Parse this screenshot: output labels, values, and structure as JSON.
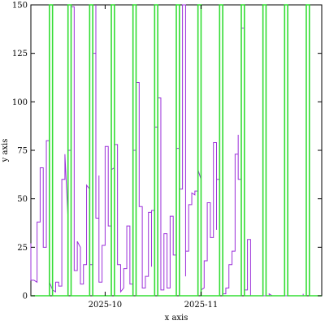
{
  "chart_data": {
    "type": "line",
    "xlabel": "x axis",
    "ylabel": "y axis",
    "x_start": "2025-09-07",
    "x_end": "2025-12-10",
    "ylim": [
      0,
      150
    ],
    "y_ticks": [
      0,
      25,
      50,
      75,
      100,
      125,
      150
    ],
    "x_ticks": [
      {
        "label": "2025-10",
        "date": "2025-10-01"
      },
      {
        "label": "2025-11",
        "date": "2025-11-01"
      }
    ],
    "grid": false,
    "colors": {
      "purple_series": "#9b30d9",
      "green_series": "#33dd33"
    },
    "series": [
      {
        "color": "#9b30d9",
        "points": [
          [
            "2025-09-07",
            27
          ],
          [
            "2025-09-07",
            8
          ],
          [
            "2025-09-08",
            8
          ],
          [
            "2025-09-09",
            7
          ],
          [
            "2025-09-09",
            38
          ],
          [
            "2025-09-10",
            38
          ],
          [
            "2025-09-10",
            66
          ],
          [
            "2025-09-11",
            66
          ],
          [
            "2025-09-11",
            25
          ],
          [
            "2025-09-12",
            25
          ],
          [
            "2025-09-12",
            33
          ],
          [
            "2025-09-12",
            80
          ],
          [
            "2025-09-13",
            80
          ],
          [
            "2025-09-13",
            7
          ],
          [
            "2025-09-14",
            3
          ],
          [
            "2025-09-15",
            2
          ],
          [
            "2025-09-15",
            7
          ],
          [
            "2025-09-16",
            7
          ],
          [
            "2025-09-16",
            5
          ],
          [
            "2025-09-17",
            5
          ],
          [
            "2025-09-17",
            60
          ],
          [
            "2025-09-18",
            60
          ],
          [
            "2025-09-18",
            73
          ],
          [
            "2025-09-19",
            40
          ],
          [
            "2025-09-19",
            75
          ],
          [
            "2025-09-20",
            75
          ],
          [
            "2025-09-20",
            149
          ],
          [
            "2025-09-21",
            149
          ],
          [
            "2025-09-21",
            13
          ],
          [
            "2025-09-22",
            13
          ],
          [
            "2025-09-22",
            28
          ],
          [
            "2025-09-23",
            25
          ],
          [
            "2025-09-23",
            6
          ],
          [
            "2025-09-24",
            6
          ],
          [
            "2025-09-24",
            16
          ],
          [
            "2025-09-25",
            16
          ],
          [
            "2025-09-25",
            57
          ],
          [
            "2025-09-26",
            55
          ],
          [
            "2025-09-26",
            16
          ],
          [
            "2025-09-27",
            16
          ],
          [
            "2025-09-27",
            90
          ],
          [
            "2025-09-27",
            125
          ],
          [
            "2025-09-28",
            125
          ],
          [
            "2025-09-28",
            150
          ],
          [
            "2025-09-28",
            40
          ],
          [
            "2025-09-29",
            40
          ],
          [
            "2025-09-29",
            62
          ],
          [
            "2025-09-29",
            7
          ],
          [
            "2025-09-30",
            7
          ],
          [
            "2025-09-30",
            26
          ],
          [
            "2025-10-01",
            26
          ],
          [
            "2025-10-01",
            77
          ],
          [
            "2025-10-02",
            77
          ],
          [
            "2025-10-02",
            36
          ],
          [
            "2025-10-03",
            36
          ],
          [
            "2025-10-03",
            65
          ],
          [
            "2025-10-04",
            66
          ],
          [
            "2025-10-04",
            78
          ],
          [
            "2025-10-05",
            78
          ],
          [
            "2025-10-05",
            16
          ],
          [
            "2025-10-06",
            16
          ],
          [
            "2025-10-06",
            2
          ],
          [
            "2025-10-07",
            4
          ],
          [
            "2025-10-07",
            14
          ],
          [
            "2025-10-08",
            14
          ],
          [
            "2025-10-08",
            36
          ],
          [
            "2025-10-09",
            36
          ],
          [
            "2025-10-09",
            6
          ],
          [
            "2025-10-10",
            6
          ],
          [
            "2025-10-10",
            75
          ],
          [
            "2025-10-11",
            75
          ],
          [
            "2025-10-11",
            110
          ],
          [
            "2025-10-12",
            110
          ],
          [
            "2025-10-12",
            46
          ],
          [
            "2025-10-13",
            46
          ],
          [
            "2025-10-13",
            4
          ],
          [
            "2025-10-14",
            4
          ],
          [
            "2025-10-14",
            10
          ],
          [
            "2025-10-15",
            10
          ],
          [
            "2025-10-15",
            43
          ],
          [
            "2025-10-16",
            43
          ],
          [
            "2025-10-16",
            15
          ],
          [
            "2025-10-16",
            44
          ],
          [
            "2025-10-17",
            44
          ],
          [
            "2025-10-17",
            87
          ],
          [
            "2025-10-18",
            87
          ],
          [
            "2025-10-18",
            77
          ],
          [
            "2025-10-18",
            102
          ],
          [
            "2025-10-19",
            102
          ],
          [
            "2025-10-19",
            3
          ],
          [
            "2025-10-20",
            3
          ],
          [
            "2025-10-20",
            32
          ],
          [
            "2025-10-21",
            32
          ],
          [
            "2025-10-21",
            4
          ],
          [
            "2025-10-22",
            4
          ],
          [
            "2025-10-22",
            41
          ],
          [
            "2025-10-23",
            41
          ],
          [
            "2025-10-23",
            21
          ],
          [
            "2025-10-24",
            21
          ],
          [
            "2025-10-24",
            76
          ],
          [
            "2025-10-25",
            76
          ],
          [
            "2025-10-25",
            55
          ],
          [
            "2025-10-26",
            55
          ],
          [
            "2025-10-26",
            150
          ],
          [
            "2025-10-27",
            150
          ],
          [
            "2025-10-27",
            10
          ],
          [
            "2025-10-27",
            23
          ],
          [
            "2025-10-28",
            23
          ],
          [
            "2025-10-28",
            47
          ],
          [
            "2025-10-29",
            47
          ],
          [
            "2025-10-29",
            53
          ],
          [
            "2025-10-30",
            52
          ],
          [
            "2025-10-30",
            54
          ],
          [
            "2025-10-31",
            54
          ],
          [
            "2025-10-31",
            65
          ],
          [
            "2025-11-01",
            60
          ],
          [
            "2025-11-01",
            122
          ],
          [
            "2025-11-01",
            3
          ],
          [
            "2025-11-02",
            4
          ],
          [
            "2025-11-02",
            18
          ],
          [
            "2025-11-03",
            18
          ],
          [
            "2025-11-03",
            48
          ],
          [
            "2025-11-04",
            48
          ],
          [
            "2025-11-04",
            30
          ],
          [
            "2025-11-05",
            30
          ],
          [
            "2025-11-05",
            79
          ],
          [
            "2025-11-06",
            79
          ],
          [
            "2025-11-06",
            34
          ],
          [
            "2025-11-06",
            60
          ],
          [
            "2025-11-07",
            60
          ],
          [
            "2025-11-07",
            150
          ],
          [
            "2025-11-08",
            150
          ],
          [
            "2025-11-08",
            1
          ],
          [
            "2025-11-09",
            1
          ],
          [
            "2025-11-09",
            4
          ],
          [
            "2025-11-10",
            4
          ],
          [
            "2025-11-10",
            16
          ],
          [
            "2025-11-11",
            16
          ],
          [
            "2025-11-11",
            23
          ],
          [
            "2025-11-12",
            23
          ],
          [
            "2025-11-12",
            73
          ],
          [
            "2025-11-13",
            73
          ],
          [
            "2025-11-13",
            83
          ],
          [
            "2025-11-13",
            60
          ],
          [
            "2025-11-14",
            60
          ],
          [
            "2025-11-14",
            138
          ],
          [
            "2025-11-15",
            138
          ],
          [
            "2025-11-15",
            3
          ],
          [
            "2025-11-16",
            3
          ],
          [
            "2025-11-16",
            29
          ],
          [
            "2025-11-17",
            29
          ],
          [
            "2025-11-17",
            0
          ],
          [
            "2025-11-23",
            0
          ],
          [
            "2025-11-23",
            1
          ],
          [
            "2025-11-24",
            0
          ],
          [
            "2025-12-04",
            0
          ],
          [
            "2025-12-04",
            1
          ]
        ]
      },
      {
        "color": "#33dd33",
        "points": [
          [
            "2025-09-07",
            0
          ],
          [
            "2025-09-13",
            0
          ],
          [
            "2025-09-13",
            150
          ],
          [
            "2025-09-14",
            150
          ],
          [
            "2025-09-14",
            0
          ],
          [
            "2025-09-19",
            0
          ],
          [
            "2025-09-19",
            150
          ],
          [
            "2025-09-20",
            150
          ],
          [
            "2025-09-20",
            0
          ],
          [
            "2025-09-26",
            0
          ],
          [
            "2025-09-26",
            150
          ],
          [
            "2025-09-27",
            150
          ],
          [
            "2025-09-27",
            0
          ],
          [
            "2025-10-03",
            0
          ],
          [
            "2025-10-03",
            150
          ],
          [
            "2025-10-04",
            150
          ],
          [
            "2025-10-04",
            0
          ],
          [
            "2025-10-10",
            0
          ],
          [
            "2025-10-10",
            150
          ],
          [
            "2025-10-11",
            150
          ],
          [
            "2025-10-11",
            0
          ],
          [
            "2025-10-17",
            0
          ],
          [
            "2025-10-17",
            150
          ],
          [
            "2025-10-18",
            150
          ],
          [
            "2025-10-18",
            0
          ],
          [
            "2025-10-24",
            0
          ],
          [
            "2025-10-24",
            150
          ],
          [
            "2025-10-25",
            150
          ],
          [
            "2025-10-25",
            0
          ],
          [
            "2025-10-31",
            0
          ],
          [
            "2025-10-31",
            150
          ],
          [
            "2025-11-01",
            150
          ],
          [
            "2025-11-01",
            0
          ],
          [
            "2025-11-07",
            0
          ],
          [
            "2025-11-07",
            150
          ],
          [
            "2025-11-08",
            150
          ],
          [
            "2025-11-08",
            0
          ],
          [
            "2025-11-14",
            0
          ],
          [
            "2025-11-14",
            150
          ],
          [
            "2025-11-15",
            150
          ],
          [
            "2025-11-15",
            0
          ],
          [
            "2025-11-21",
            0
          ],
          [
            "2025-11-21",
            150
          ],
          [
            "2025-11-22",
            150
          ],
          [
            "2025-11-22",
            0
          ],
          [
            "2025-11-28",
            0
          ],
          [
            "2025-11-28",
            150
          ],
          [
            "2025-11-29",
            150
          ],
          [
            "2025-11-29",
            0
          ],
          [
            "2025-12-05",
            0
          ],
          [
            "2025-12-05",
            150
          ],
          [
            "2025-12-06",
            150
          ],
          [
            "2025-12-06",
            0
          ],
          [
            "2025-12-10",
            0
          ]
        ]
      }
    ]
  }
}
